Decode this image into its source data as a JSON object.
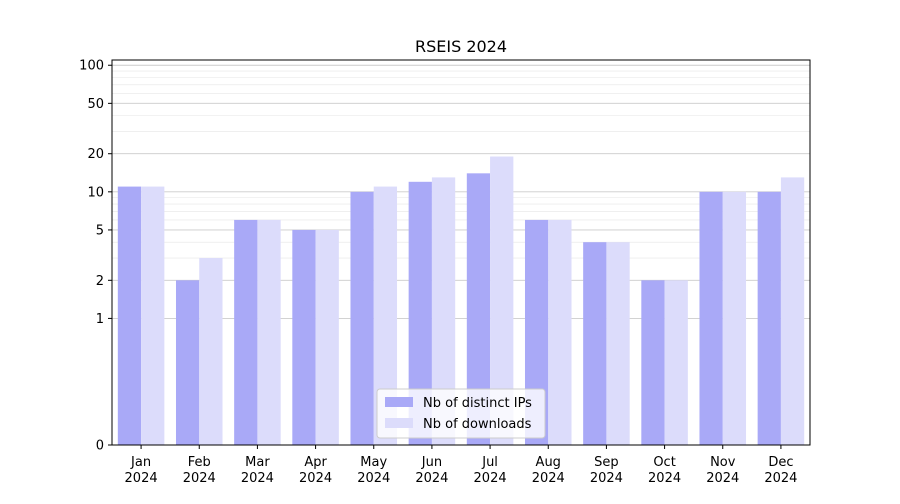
{
  "chart_data": {
    "type": "bar",
    "title": "RSEIS 2024",
    "xlabel": "",
    "ylabel": "",
    "yscale": "symlog",
    "ylim": [
      0,
      110
    ],
    "y_ticks": [
      0,
      1,
      2,
      5,
      10,
      20,
      50,
      100
    ],
    "grid": true,
    "legend_position": "bottom-center",
    "categories": [
      {
        "month": "Jan",
        "year": "2024"
      },
      {
        "month": "Feb",
        "year": "2024"
      },
      {
        "month": "Mar",
        "year": "2024"
      },
      {
        "month": "Apr",
        "year": "2024"
      },
      {
        "month": "May",
        "year": "2024"
      },
      {
        "month": "Jun",
        "year": "2024"
      },
      {
        "month": "Jul",
        "year": "2024"
      },
      {
        "month": "Aug",
        "year": "2024"
      },
      {
        "month": "Sep",
        "year": "2024"
      },
      {
        "month": "Oct",
        "year": "2024"
      },
      {
        "month": "Nov",
        "year": "2024"
      },
      {
        "month": "Dec",
        "year": "2024"
      }
    ],
    "series": [
      {
        "name": "Nb of distinct IPs",
        "color": "#a9a9f7",
        "values": [
          11,
          2,
          6,
          5,
          10,
          12,
          14,
          6,
          4,
          2,
          10,
          10
        ]
      },
      {
        "name": "Nb of downloads",
        "color": "#dcdcfb",
        "values": [
          11,
          3,
          6,
          5,
          11,
          13,
          19,
          6,
          4,
          2,
          10,
          13
        ]
      }
    ]
  }
}
